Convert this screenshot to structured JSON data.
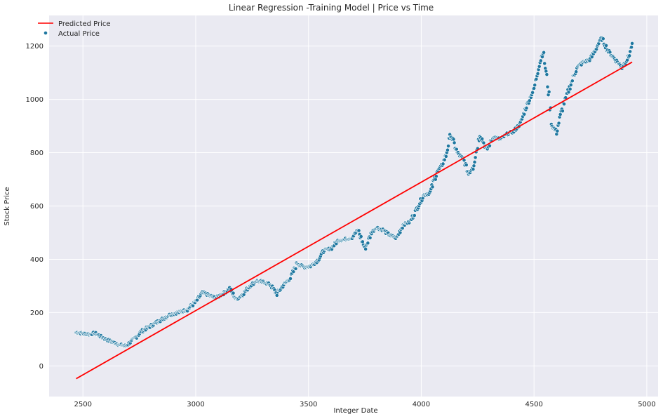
{
  "chart_data": {
    "type": "scatter",
    "title": "Linear Regression -Training Model | Price vs Time",
    "xlabel": "Integer Date",
    "ylabel": "Stock Price",
    "xlim": [
      2350,
      5050
    ],
    "ylim": [
      -115,
      1315
    ],
    "xticks": [
      2500,
      3000,
      3500,
      4000,
      4500,
      5000
    ],
    "yticks": [
      0,
      200,
      400,
      600,
      800,
      1000,
      1200
    ],
    "grid": true,
    "legend_position": "top-left",
    "colors": {
      "background": "#eaeaf2",
      "grid": "#ffffff",
      "line": "#ff0000",
      "points": "#1f77a0",
      "point_edge": "#ffffff"
    },
    "series": [
      {
        "name": "Predicted Price",
        "kind": "line",
        "x": [
          2470,
          4935
        ],
        "y": [
          -48,
          1140
        ]
      },
      {
        "name": "Actual Price",
        "kind": "scatter",
        "x": [
          2470,
          2500,
          2530,
          2550,
          2580,
          2600,
          2630,
          2660,
          2690,
          2720,
          2760,
          2800,
          2840,
          2880,
          2920,
          2960,
          3000,
          3030,
          3060,
          3090,
          3120,
          3150,
          3180,
          3210,
          3240,
          3270,
          3300,
          3330,
          3360,
          3390,
          3420,
          3450,
          3480,
          3510,
          3540,
          3570,
          3600,
          3630,
          3660,
          3690,
          3720,
          3750,
          3780,
          3800,
          3830,
          3860,
          3890,
          3920,
          3950,
          3980,
          4010,
          4040,
          4070,
          4090,
          4110,
          4130,
          4160,
          4190,
          4210,
          4230,
          4260,
          4290,
          4320,
          4350,
          4380,
          4410,
          4440,
          4460,
          4480,
          4500,
          4520,
          4540,
          4560,
          4580,
          4600,
          4630,
          4660,
          4690,
          4720,
          4750,
          4780,
          4800,
          4830,
          4860,
          4890,
          4920,
          4935
        ],
        "y": [
          125,
          122,
          118,
          124,
          110,
          100,
          90,
          80,
          75,
          95,
          130,
          150,
          170,
          190,
          200,
          210,
          240,
          275,
          265,
          255,
          270,
          290,
          250,
          270,
          300,
          320,
          315,
          305,
          270,
          305,
          330,
          385,
          370,
          375,
          395,
          435,
          440,
          470,
          475,
          480,
          510,
          440,
          500,
          520,
          510,
          490,
          480,
          530,
          540,
          590,
          640,
          650,
          730,
          750,
          790,
          870,
          800,
          770,
          720,
          750,
          870,
          810,
          860,
          850,
          870,
          880,
          910,
          960,
          1000,
          1040,
          1120,
          1180,
          1060,
          900,
          880,
          980,
          1050,
          1120,
          1140,
          1150,
          1200,
          1230,
          1180,
          1150,
          1120,
          1160,
          1210
        ]
      }
    ]
  }
}
